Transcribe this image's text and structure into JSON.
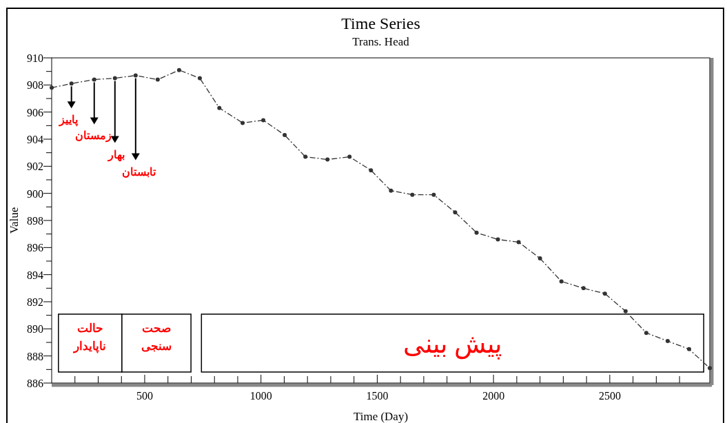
{
  "chart_data": {
    "type": "line",
    "title": "Time Series",
    "subtitle": "Trans. Head",
    "xlabel": "Time  (Day)",
    "ylabel": "Value",
    "xlim": [
      100,
      2930
    ],
    "ylim": [
      886,
      910
    ],
    "xticks": [
      {
        "value": 200,
        "label": null
      },
      {
        "value": 300,
        "label": null
      },
      {
        "value": 400,
        "label": null
      },
      500,
      {
        "value": 600,
        "label": null
      },
      {
        "value": 700,
        "label": null
      },
      {
        "value": 800,
        "label": null
      },
      {
        "value": 900,
        "label": null
      },
      1000,
      {
        "value": 1100,
        "label": null
      },
      {
        "value": 1200,
        "label": null
      },
      {
        "value": 1300,
        "label": null
      },
      {
        "value": 1400,
        "label": null
      },
      1500,
      {
        "value": 1600,
        "label": null
      },
      {
        "value": 1700,
        "label": null
      },
      {
        "value": 1800,
        "label": null
      },
      {
        "value": 1900,
        "label": null
      },
      2000,
      {
        "value": 2100,
        "label": null
      },
      {
        "value": 2200,
        "label": null
      },
      {
        "value": 2300,
        "label": null
      },
      {
        "value": 2400,
        "label": null
      },
      2500,
      {
        "value": 2600,
        "label": null
      },
      {
        "value": 2700,
        "label": null
      },
      {
        "value": 2800,
        "label": null
      }
    ],
    "yticks": [
      886,
      {
        "value": 887,
        "label": null
      },
      888,
      {
        "value": 889,
        "label": null
      },
      890,
      {
        "value": 891,
        "label": null
      },
      892,
      {
        "value": 893,
        "label": null
      },
      894,
      {
        "value": 895,
        "label": null
      },
      896,
      {
        "value": 897,
        "label": null
      },
      898,
      {
        "value": 899,
        "label": null
      },
      900,
      {
        "value": 901,
        "label": null
      },
      902,
      {
        "value": 903,
        "label": null
      },
      904,
      {
        "value": 905,
        "label": null
      },
      906,
      {
        "value": 907,
        "label": null
      },
      908,
      {
        "value": 909,
        "label": null
      },
      910
    ],
    "grid": false,
    "marker": "circle",
    "line_style": "dashed",
    "series": [
      {
        "color": "#333333",
        "x": [
          100,
          185,
          283,
          372,
          461,
          556,
          648,
          737,
          821,
          921,
          1010,
          1102,
          1191,
          1286,
          1381,
          1473,
          1559,
          1651,
          1743,
          1835,
          1927,
          2019,
          2108,
          2200,
          2292,
          2387,
          2479,
          2568,
          2657,
          2749,
          2841,
          2930
        ],
        "values": [
          907.8,
          908.1,
          908.4,
          908.5,
          908.7,
          908.4,
          909.1,
          908.5,
          906.3,
          905.2,
          905.4,
          904.3,
          902.7,
          902.5,
          902.7,
          901.7,
          900.2,
          899.9,
          899.9,
          898.6,
          897.1,
          896.6,
          896.4,
          895.2,
          893.5,
          893.0,
          892.6,
          891.3,
          889.7,
          889.1,
          888.5,
          887.1
        ]
      }
    ],
    "annotations": [
      {
        "text": "پاییز",
        "x": 185,
        "y": 908.1
      },
      {
        "text": "زمستان",
        "x": 283,
        "y": 908.4
      },
      {
        "text": "بهار",
        "x": 372,
        "y": 908.5
      },
      {
        "text": "تابستان",
        "x": 461,
        "y": 908.7
      }
    ],
    "bands": [
      {
        "axis": "x",
        "from": 129,
        "to": 402,
        "label": "حالت ناپایدار"
      },
      {
        "axis": "x",
        "from": 402,
        "to": 699,
        "label": "صحت سنجی"
      },
      {
        "axis": "x",
        "from": 744,
        "to": 2904,
        "label": "پیش بینی"
      }
    ]
  }
}
